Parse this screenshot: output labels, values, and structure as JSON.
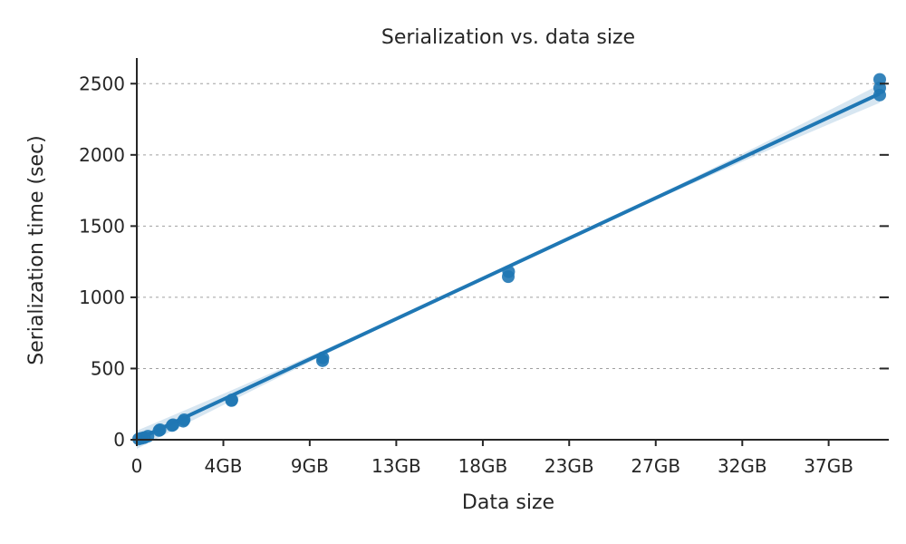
{
  "chart_data": {
    "type": "scatter",
    "title": "Serialization vs. data size",
    "xlabel": "Data size",
    "ylabel": "Serialization time (sec)",
    "xlim": [
      0,
      40
    ],
    "ylim": [
      0,
      2680
    ],
    "x_ticks": [
      {
        "value": 0,
        "label": "0"
      },
      {
        "value": 4.66,
        "label": "4GB"
      },
      {
        "value": 9.31,
        "label": "9GB"
      },
      {
        "value": 13.97,
        "label": "13GB"
      },
      {
        "value": 18.63,
        "label": "18GB"
      },
      {
        "value": 23.28,
        "label": "23GB"
      },
      {
        "value": 27.94,
        "label": "27GB"
      },
      {
        "value": 32.6,
        "label": "32GB"
      },
      {
        "value": 37.25,
        "label": "37GB"
      }
    ],
    "y_ticks": [
      0,
      500,
      1000,
      1500,
      2000,
      2500
    ],
    "grid": "horizontal dashed",
    "series": [
      {
        "color": "#1f77b4",
        "points": [
          {
            "x": 0.1,
            "y": 5
          },
          {
            "x": 0.25,
            "y": 10
          },
          {
            "x": 0.4,
            "y": 15
          },
          {
            "x": 0.6,
            "y": 25
          },
          {
            "x": 1.2,
            "y": 65
          },
          {
            "x": 1.25,
            "y": 70
          },
          {
            "x": 1.9,
            "y": 100
          },
          {
            "x": 1.95,
            "y": 105
          },
          {
            "x": 2.5,
            "y": 130
          },
          {
            "x": 2.55,
            "y": 140
          },
          {
            "x": 5.1,
            "y": 275
          },
          {
            "x": 5.12,
            "y": 280
          },
          {
            "x": 10.0,
            "y": 555
          },
          {
            "x": 10.02,
            "y": 575
          },
          {
            "x": 20.0,
            "y": 1145
          },
          {
            "x": 20.02,
            "y": 1180
          },
          {
            "x": 40.0,
            "y": 2420
          },
          {
            "x": 40.0,
            "y": 2470
          },
          {
            "x": 40.0,
            "y": 2530
          }
        ],
        "regression": {
          "x": [
            0,
            40
          ],
          "y": [
            0,
            2430
          ]
        }
      }
    ]
  }
}
